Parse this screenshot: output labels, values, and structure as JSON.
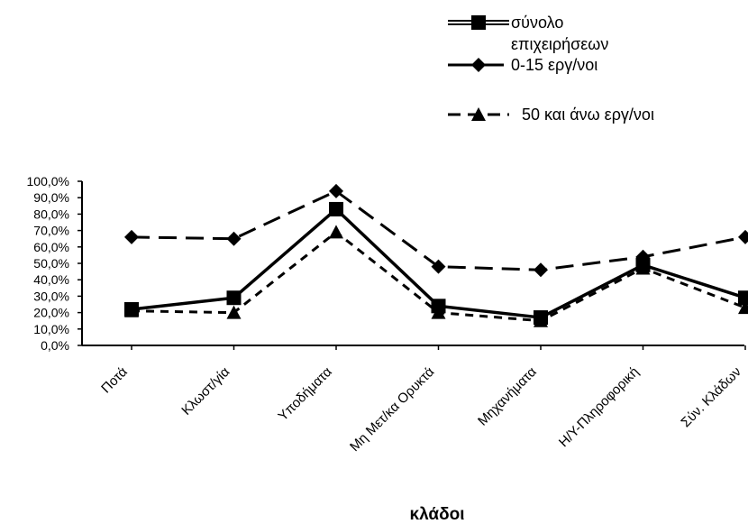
{
  "chart_data": {
    "type": "line",
    "categories": [
      "Ποτά",
      "Κλωστ/γία",
      "Υποδήματα",
      "Μη Μετ/κα Ορυκτά",
      "Μηχανήματα",
      "Η/Υ-Πληροφορική",
      "Σύν. Κλάδων"
    ],
    "series": [
      {
        "name": "σύνολο επιχειρήσεων",
        "name_lines": [
          "σύνολο",
          "επιχειρήσεων"
        ],
        "values": [
          22,
          29,
          83,
          24,
          17,
          49,
          29
        ],
        "marker": "square",
        "line_style": "solid"
      },
      {
        "name": "0-15 εργ/νοι",
        "name_lines": [
          "0-15 εργ/νοι"
        ],
        "values": [
          66,
          65,
          94,
          48,
          46,
          54,
          66
        ],
        "marker": "diamond",
        "line_style": "long-dash"
      },
      {
        "name": "50 και άνω εργ/νοι",
        "name_lines": [
          "50 και άνω εργ/νοι"
        ],
        "values": [
          21,
          20,
          69,
          20,
          15,
          47,
          23
        ],
        "marker": "triangle",
        "line_style": "short-dash"
      }
    ],
    "xlabel": "κλάδοι",
    "ylabel": "",
    "ylim": [
      0,
      100
    ],
    "yticks": [
      0,
      10,
      20,
      30,
      40,
      50,
      60,
      70,
      80,
      90,
      100
    ],
    "ytick_labels": [
      "0,0%",
      "10,0%",
      "20,0%",
      "30,0%",
      "40,0%",
      "50,0%",
      "60,0%",
      "70,0%",
      "80,0%",
      "90,0%",
      "100,0%"
    ],
    "grid": false,
    "legend_position": "top-right",
    "line_color": "#000000"
  }
}
